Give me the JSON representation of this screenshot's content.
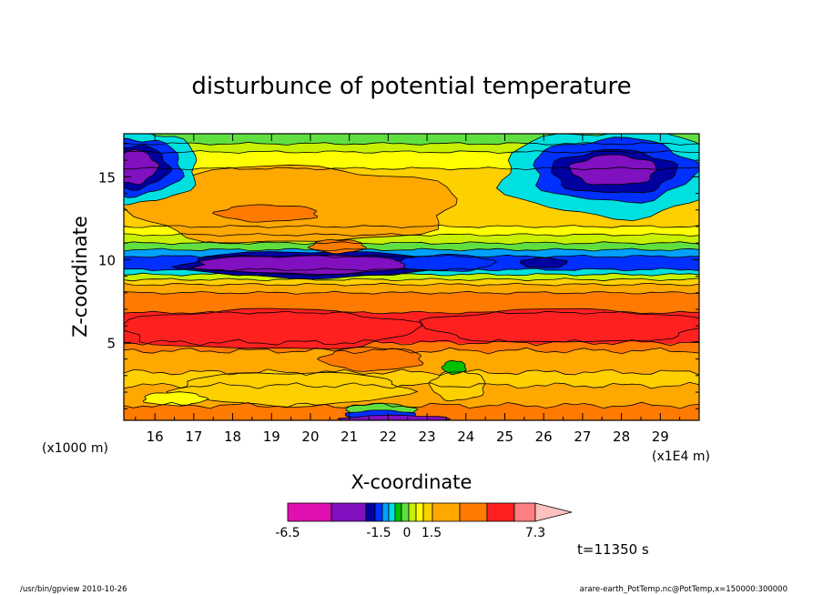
{
  "chart_data": {
    "type": "heatmap",
    "title": "disturbunce of potential temperature",
    "xlabel": "X-coordinate",
    "ylabel": "Z-coordinate",
    "x_unit": "(x1E4 m)",
    "y_unit": "(x1000 m)",
    "xlim": [
      15.2,
      30.0
    ],
    "ylim": [
      0.3,
      17.6
    ],
    "x_ticks": [
      16,
      17,
      18,
      19,
      20,
      21,
      22,
      23,
      24,
      25,
      26,
      27,
      28,
      29
    ],
    "y_ticks": [
      5,
      10,
      15
    ],
    "legend_labels": [
      {
        "text": "-6.5",
        "value": -6.5
      },
      {
        "text": "-1.5",
        "value": -1.5
      },
      {
        "text": "0",
        "value": 0
      },
      {
        "text": "1.5",
        "value": 1.5
      },
      {
        "text": "7.3",
        "value": 7.3
      }
    ],
    "colorbar": [
      "#e010b0",
      "#8010c0",
      "#0000a0",
      "#0030ff",
      "#00a0ff",
      "#00e0e0",
      "#00c000",
      "#60e040",
      "#c8f000",
      "#ffff00",
      "#ffd000",
      "#ffa800",
      "#ff7a00",
      "#ff2020",
      "#ff8080",
      "#ffc0c0"
    ],
    "bands": [
      {
        "z": 0.3,
        "color": "#ff7a00"
      },
      {
        "z": 1.2,
        "color": "#ffa800"
      },
      {
        "z": 2.4,
        "color": "#ffd000"
      },
      {
        "z": 3.2,
        "color": "#ffa800"
      },
      {
        "z": 4.5,
        "color": "#ff7a00"
      },
      {
        "z": 5.0,
        "color": "#ff2020"
      },
      {
        "z": 6.8,
        "color": "#ff7a00"
      },
      {
        "z": 8.0,
        "color": "#ffa800"
      },
      {
        "z": 8.5,
        "color": "#ffd000"
      },
      {
        "z": 8.8,
        "color": "#c8f000"
      },
      {
        "z": 9.1,
        "color": "#00e0e0"
      },
      {
        "z": 9.4,
        "color": "#0030ff"
      },
      {
        "z": 10.2,
        "color": "#00a0ff"
      },
      {
        "z": 10.6,
        "color": "#60e040"
      },
      {
        "z": 11.0,
        "color": "#c8f000"
      },
      {
        "z": 11.5,
        "color": "#ffff00"
      },
      {
        "z": 12.0,
        "color": "#ffd000"
      },
      {
        "z": 15.5,
        "color": "#ffff00"
      },
      {
        "z": 16.5,
        "color": "#c8f000"
      },
      {
        "z": 17.0,
        "color": "#60e040"
      }
    ],
    "blobs": [
      {
        "x": 20.0,
        "z": 9.7,
        "rx": 3.3,
        "rz": 0.8,
        "color": "#0000a0"
      },
      {
        "x": 19.9,
        "z": 9.7,
        "rx": 2.9,
        "rz": 0.55,
        "color": "#8010c0"
      },
      {
        "x": 23.5,
        "z": 9.8,
        "rx": 1.2,
        "rz": 0.5,
        "color": "#0030ff"
      },
      {
        "x": 26.0,
        "z": 9.8,
        "rx": 0.6,
        "rz": 0.3,
        "color": "#0000a0"
      },
      {
        "x": 19.5,
        "z": 13.3,
        "rx": 4.3,
        "rz": 2.3,
        "color": "#ffa800"
      },
      {
        "x": 18.9,
        "z": 12.8,
        "rx": 1.3,
        "rz": 0.5,
        "color": "#ff7a00"
      },
      {
        "x": 20.7,
        "z": 10.8,
        "rx": 0.7,
        "rz": 0.4,
        "color": "#ff7a00"
      },
      {
        "x": 27.8,
        "z": 15.2,
        "rx": 2.9,
        "rz": 2.6,
        "color": "#00e0e0"
      },
      {
        "x": 27.8,
        "z": 15.4,
        "rx": 2.1,
        "rz": 1.9,
        "color": "#0030ff"
      },
      {
        "x": 27.8,
        "z": 15.3,
        "rx": 1.6,
        "rz": 1.3,
        "color": "#0000a0"
      },
      {
        "x": 27.8,
        "z": 15.4,
        "rx": 1.1,
        "rz": 0.9,
        "color": "#8010c0"
      },
      {
        "x": 15.6,
        "z": 15.6,
        "rx": 1.5,
        "rz": 2.2,
        "color": "#00e0e0"
      },
      {
        "x": 15.5,
        "z": 15.6,
        "rx": 1.2,
        "rz": 1.7,
        "color": "#0030ff"
      },
      {
        "x": 15.4,
        "z": 15.6,
        "rx": 0.95,
        "rz": 1.3,
        "color": "#0000a0"
      },
      {
        "x": 15.4,
        "z": 15.6,
        "rx": 0.65,
        "rz": 1.0,
        "color": "#8010c0"
      },
      {
        "x": 18.9,
        "z": 5.8,
        "rx": 3.8,
        "rz": 1.2,
        "color": "#ff2020"
      },
      {
        "x": 26.5,
        "z": 6.0,
        "rx": 3.6,
        "rz": 1.0,
        "color": "#ff2020"
      },
      {
        "x": 23.8,
        "z": 2.4,
        "rx": 0.7,
        "rz": 0.9,
        "color": "#ffd000"
      },
      {
        "x": 23.7,
        "z": 3.5,
        "rx": 0.3,
        "rz": 0.4,
        "color": "#00c000"
      },
      {
        "x": 19.5,
        "z": 2.2,
        "rx": 3.0,
        "rz": 1.0,
        "color": "#ffd000"
      },
      {
        "x": 16.5,
        "z": 1.6,
        "rx": 0.8,
        "rz": 0.4,
        "color": "#ffff00"
      },
      {
        "x": 21.8,
        "z": 0.9,
        "rx": 0.9,
        "rz": 0.4,
        "color": "#60e040"
      },
      {
        "x": 21.8,
        "z": 0.6,
        "rx": 0.9,
        "rz": 0.3,
        "color": "#0030ff"
      },
      {
        "x": 22.2,
        "z": 0.35,
        "rx": 1.4,
        "rz": 0.25,
        "color": "#8010c0"
      },
      {
        "x": 21.6,
        "z": 4.0,
        "rx": 1.3,
        "rz": 0.7,
        "color": "#ff7a00"
      }
    ],
    "time_label": "t=11350 s"
  },
  "footer": {
    "left": "/usr/bin/gpview   2010-10-26",
    "right": "arare-earth_PotTemp.nc@PotTemp,x=150000:300000"
  }
}
